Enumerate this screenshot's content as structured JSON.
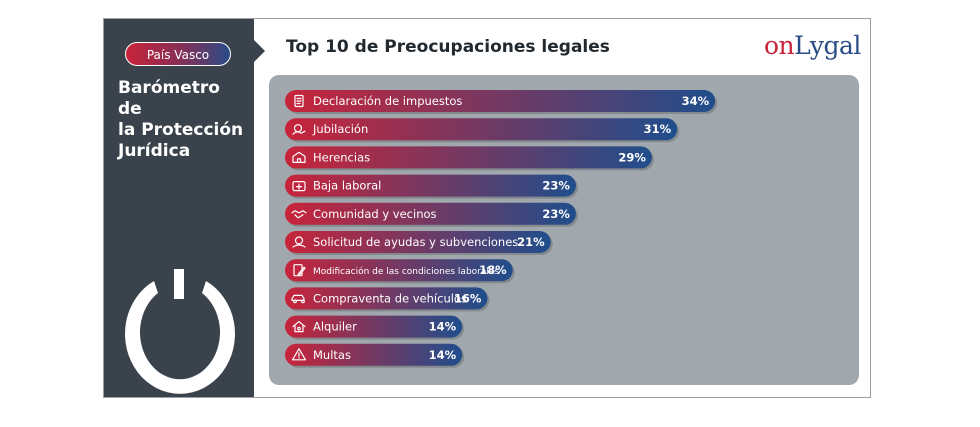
{
  "sidebar": {
    "region": "País Vasco",
    "title_lines": [
      "Barómetro de",
      "la Protección",
      "Jurídica"
    ],
    "logo_icon": "power-icon"
  },
  "header": {
    "title": "Top 10 de Preocupaciones legales",
    "brand": {
      "part1": "on",
      "part2": "Lygal"
    }
  },
  "colors": {
    "sidebar": "#3a434b",
    "panel": "#a0a8ad",
    "bar_start": "#c8243a",
    "bar_end": "#1f4e8c"
  },
  "chart_data": {
    "type": "bar",
    "orientation": "horizontal",
    "title": "Top 10 de Preocupaciones legales",
    "xlabel": "",
    "ylabel": "",
    "unit": "%",
    "xlim": [
      0,
      40
    ],
    "grid": false,
    "legend": "none",
    "categories": [
      "Declaración de impuestos",
      "Jubilación",
      "Herencias",
      "Baja laboral",
      "Comunidad y vecinos",
      "Solicitud de ayudas y subvenciones",
      "Modificación de las condiciones laborales",
      "Compraventa de vehículos",
      "Alquiler",
      "Multas"
    ],
    "values": [
      34,
      31,
      29,
      23,
      23,
      21,
      18,
      16,
      14,
      14
    ],
    "value_labels": [
      "34%",
      "31%",
      "29%",
      "23%",
      "23%",
      "21%",
      "18%",
      "16%",
      "14%",
      "14%"
    ],
    "icons": [
      "tax-document-icon",
      "retirement-icon",
      "inheritance-icon",
      "sick-leave-icon",
      "handshake-icon",
      "aid-request-icon",
      "contract-edit-icon",
      "car-sale-icon",
      "house-rent-icon",
      "warning-fine-icon"
    ]
  }
}
